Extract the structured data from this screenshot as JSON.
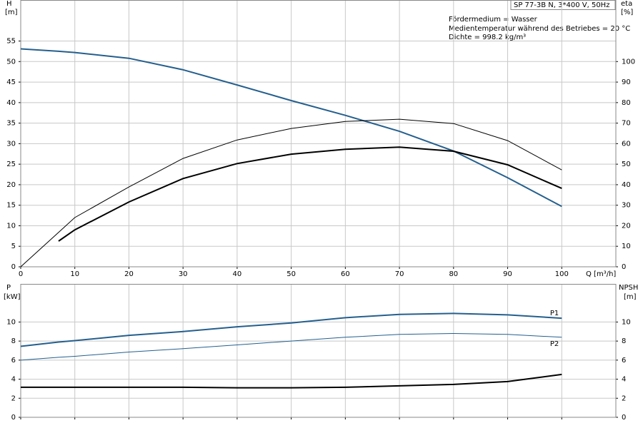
{
  "chart_data": [
    {
      "type": "line",
      "title": "SP 77-3B N, 3*400 V, 50Hz",
      "notes": [
        "Fördermedium = Wasser",
        "Medientemperatur während des Betriebes = 20 °C",
        "Dichte = 998.2 kg/m³"
      ],
      "xlabel": "Q [m³/h]",
      "ylabel": {
        "name": "H",
        "unit": "[m]"
      },
      "y2label": {
        "name": "eta",
        "unit": "[%]"
      },
      "x": [
        0,
        7,
        10,
        20,
        30,
        40,
        50,
        60,
        70,
        80,
        90,
        100
      ],
      "xlim": [
        0,
        110
      ],
      "xticks": [
        0,
        10,
        20,
        30,
        40,
        50,
        60,
        70,
        80,
        90,
        100
      ],
      "ylim": [
        0,
        65
      ],
      "yticks": [
        0,
        5,
        10,
        15,
        20,
        25,
        30,
        35,
        40,
        45,
        50,
        55
      ],
      "y2lim": [
        0,
        130
      ],
      "y2ticks": [
        0,
        10,
        20,
        30,
        40,
        50,
        60,
        70,
        80,
        90,
        100
      ],
      "grid": true,
      "series": [
        {
          "color": "#245f8e",
          "linewidth": 2,
          "values": [
            53.1,
            52.5,
            52.2,
            50.8,
            48,
            44.3,
            40.5,
            36.9,
            33,
            28.2,
            21.7,
            14.7
          ]
        },
        {
          "color": "#000000",
          "linewidth": 1,
          "axis": "y2",
          "values": [
            0,
            16.8,
            24,
            38.9,
            52.8,
            61.8,
            67.4,
            70.8,
            71.9,
            69.8,
            61.5,
            47.2
          ]
        },
        {
          "color": "#000000",
          "linewidth": 2,
          "axis": "y2",
          "values": [
            null,
            12.5,
            18,
            31.6,
            43,
            50.3,
            54.9,
            57.3,
            58.3,
            56.3,
            49.7,
            38.2
          ]
        }
      ]
    },
    {
      "type": "line",
      "ylabel": {
        "name": "P",
        "unit": "[kW]"
      },
      "y2label": {
        "name": "NPSH",
        "unit": "[m]"
      },
      "x": [
        0,
        7,
        10,
        20,
        30,
        40,
        50,
        60,
        70,
        80,
        90,
        100
      ],
      "xlim": [
        0,
        110
      ],
      "xticks": [
        0,
        10,
        20,
        30,
        40,
        50,
        60,
        70,
        80,
        90,
        100
      ],
      "ylim": [
        0,
        14
      ],
      "yticks": [
        0,
        2,
        4,
        6,
        8,
        10
      ],
      "y2lim": [
        0,
        14
      ],
      "y2ticks": [
        0,
        2,
        4,
        6,
        8,
        10
      ],
      "grid": true,
      "series": [
        {
          "name": "P1",
          "label_pos": "above",
          "color": "#245f8e",
          "linewidth": 2,
          "values": [
            7.45,
            7.9,
            8.05,
            8.6,
            9.0,
            9.5,
            9.9,
            10.45,
            10.8,
            10.9,
            10.75,
            10.4
          ]
        },
        {
          "name": "P2",
          "label_pos": "below",
          "color": "#245f8e",
          "linewidth": 1,
          "values": [
            6.0,
            6.3,
            6.4,
            6.85,
            7.2,
            7.6,
            8.0,
            8.4,
            8.7,
            8.8,
            8.7,
            8.4
          ]
        },
        {
          "color": "#000000",
          "linewidth": 2,
          "axis": "y2",
          "values": [
            3.15,
            3.15,
            3.15,
            3.15,
            3.15,
            3.1,
            3.1,
            3.15,
            3.3,
            3.45,
            3.75,
            4.5
          ]
        }
      ]
    }
  ]
}
